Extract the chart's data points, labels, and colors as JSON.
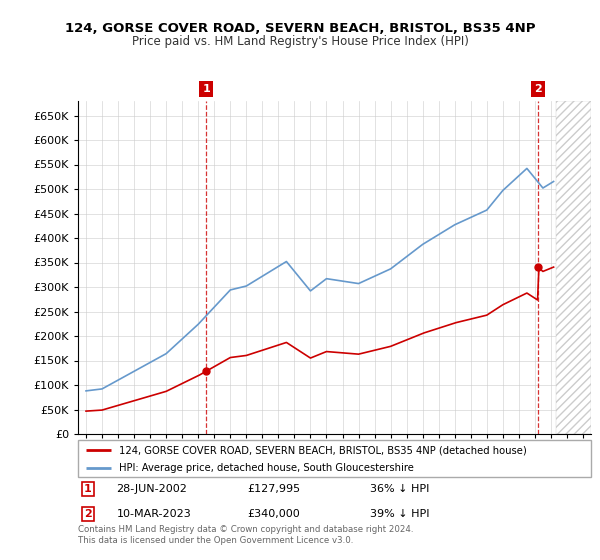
{
  "title1": "124, GORSE COVER ROAD, SEVERN BEACH, BRISTOL, BS35 4NP",
  "title2": "Price paid vs. HM Land Registry's House Price Index (HPI)",
  "legend1": "124, GORSE COVER ROAD, SEVERN BEACH, BRISTOL, BS35 4NP (detached house)",
  "legend2": "HPI: Average price, detached house, South Gloucestershire",
  "annotation1_date": "28-JUN-2002",
  "annotation1_price": "£127,995",
  "annotation1_hpi": "36% ↓ HPI",
  "annotation2_date": "10-MAR-2023",
  "annotation2_price": "£340,000",
  "annotation2_hpi": "39% ↓ HPI",
  "footnote": "Contains HM Land Registry data © Crown copyright and database right 2024.\nThis data is licensed under the Open Government Licence v3.0.",
  "red_color": "#cc0000",
  "blue_color": "#6699cc",
  "background_color": "#ffffff",
  "ylim": [
    0,
    680000
  ],
  "yticks": [
    0,
    50000,
    100000,
    150000,
    200000,
    250000,
    300000,
    350000,
    400000,
    450000,
    500000,
    550000,
    600000,
    650000
  ],
  "sale1_year": 2002.49,
  "sale1_price": 127995,
  "sale2_year": 2023.19,
  "sale2_price": 340000
}
